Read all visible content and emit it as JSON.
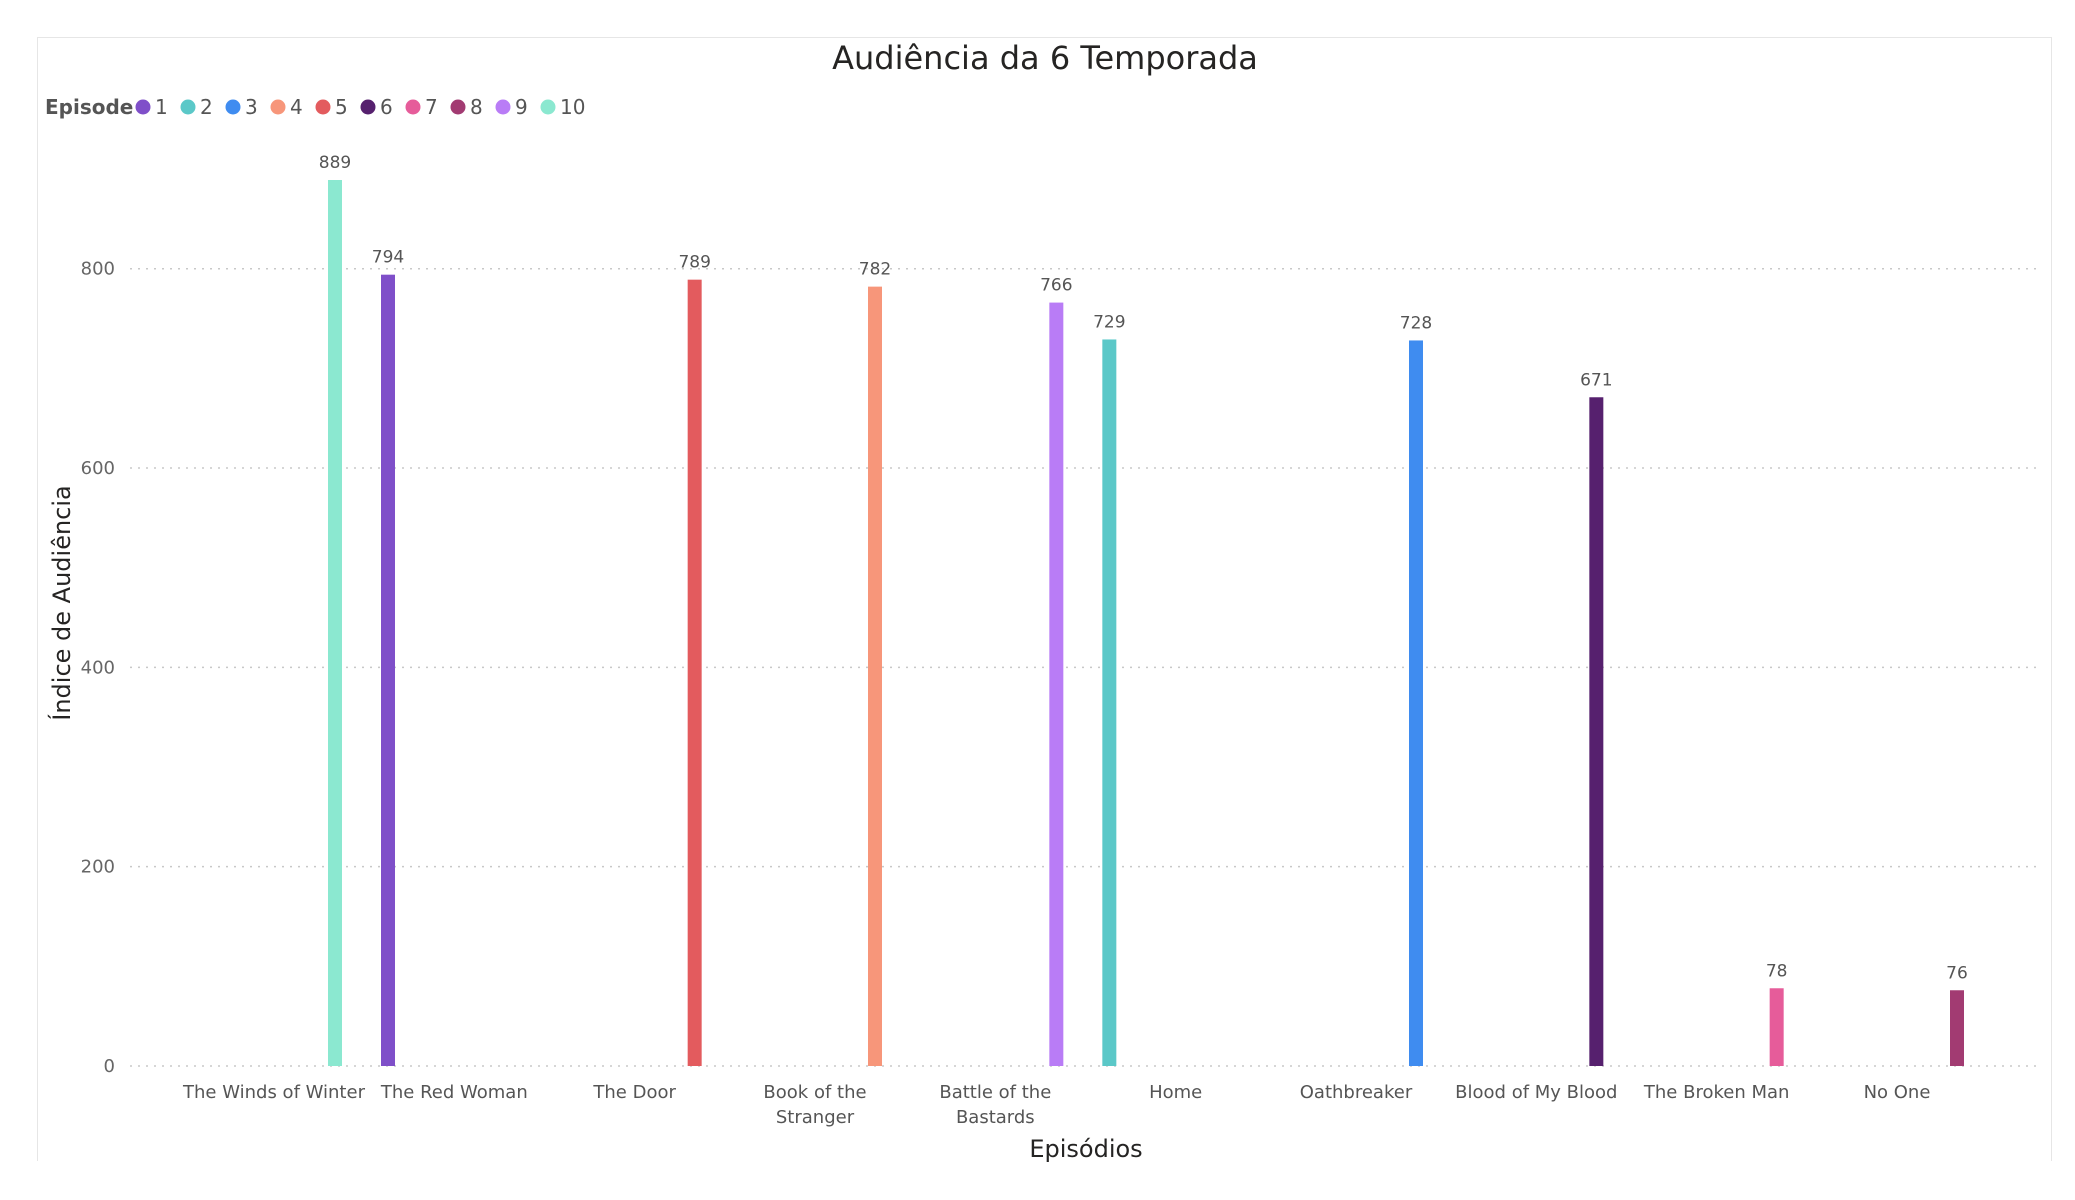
{
  "chart_data": {
    "type": "bar",
    "title": "Audiência da 6 Temporada",
    "xlabel": "Episódios",
    "ylabel": "Índice de Audiência",
    "ylim": [
      0,
      889
    ],
    "yticks": [
      0,
      200,
      400,
      600,
      800
    ],
    "grid": true,
    "legend": {
      "title": "Episode",
      "placement": "top-left",
      "items": [
        {
          "label": "1",
          "color": "#7F4FC9"
        },
        {
          "label": "2",
          "color": "#5BC8C8"
        },
        {
          "label": "3",
          "color": "#3F8CF0"
        },
        {
          "label": "4",
          "color": "#F7967A"
        },
        {
          "label": "5",
          "color": "#E35B5E"
        },
        {
          "label": "6",
          "color": "#56206E"
        },
        {
          "label": "7",
          "color": "#E65C9A"
        },
        {
          "label": "8",
          "color": "#A23B72"
        },
        {
          "label": "9",
          "color": "#B97CF6"
        },
        {
          "label": "10",
          "color": "#8BE8D0"
        }
      ]
    },
    "categories": [
      {
        "label": [
          "The Winds of Winter"
        ],
        "bars": [
          {
            "episode": "10",
            "value": 889
          },
          {
            "episode": "1",
            "value": 794
          }
        ]
      },
      {
        "label": [
          "The Red Woman"
        ],
        "bars": []
      },
      {
        "label": [
          "The Door"
        ],
        "bars": [
          {
            "episode": "5",
            "value": 789
          }
        ]
      },
      {
        "label": [
          "Book of the",
          "Stranger"
        ],
        "bars": [
          {
            "episode": "4",
            "value": 782
          }
        ]
      },
      {
        "label": [
          "Battle of the",
          "Bastards"
        ],
        "bars": [
          {
            "episode": "9",
            "value": 766
          },
          {
            "episode": "2",
            "value": 729
          }
        ]
      },
      {
        "label": [
          "Home"
        ],
        "bars": []
      },
      {
        "label": [
          "Oathbreaker"
        ],
        "bars": [
          {
            "episode": "3",
            "value": 728
          }
        ]
      },
      {
        "label": [
          "Blood of My Blood"
        ],
        "bars": [
          {
            "episode": "6",
            "value": 671
          }
        ]
      },
      {
        "label": [
          "The Broken Man"
        ],
        "bars": [
          {
            "episode": "7",
            "value": 78
          }
        ]
      },
      {
        "label": [
          "No One"
        ],
        "bars": [
          {
            "episode": "8",
            "value": 76
          }
        ]
      }
    ]
  }
}
